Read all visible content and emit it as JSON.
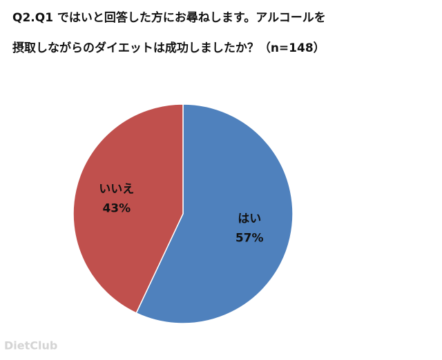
{
  "chart_data": {
    "type": "pie",
    "title": [
      "Q2.Q1 ではいと回答した方にお尋ねします。アルコールを",
      "摂取しながらのダイエットは成功しましたか？（n=148）"
    ],
    "categories": [
      "はい",
      "いいえ"
    ],
    "values": [
      57,
      43
    ],
    "value_labels": [
      "57%",
      "43%"
    ],
    "colors": [
      "#4f81bd",
      "#c0504d"
    ],
    "watermark": "DietClub"
  }
}
